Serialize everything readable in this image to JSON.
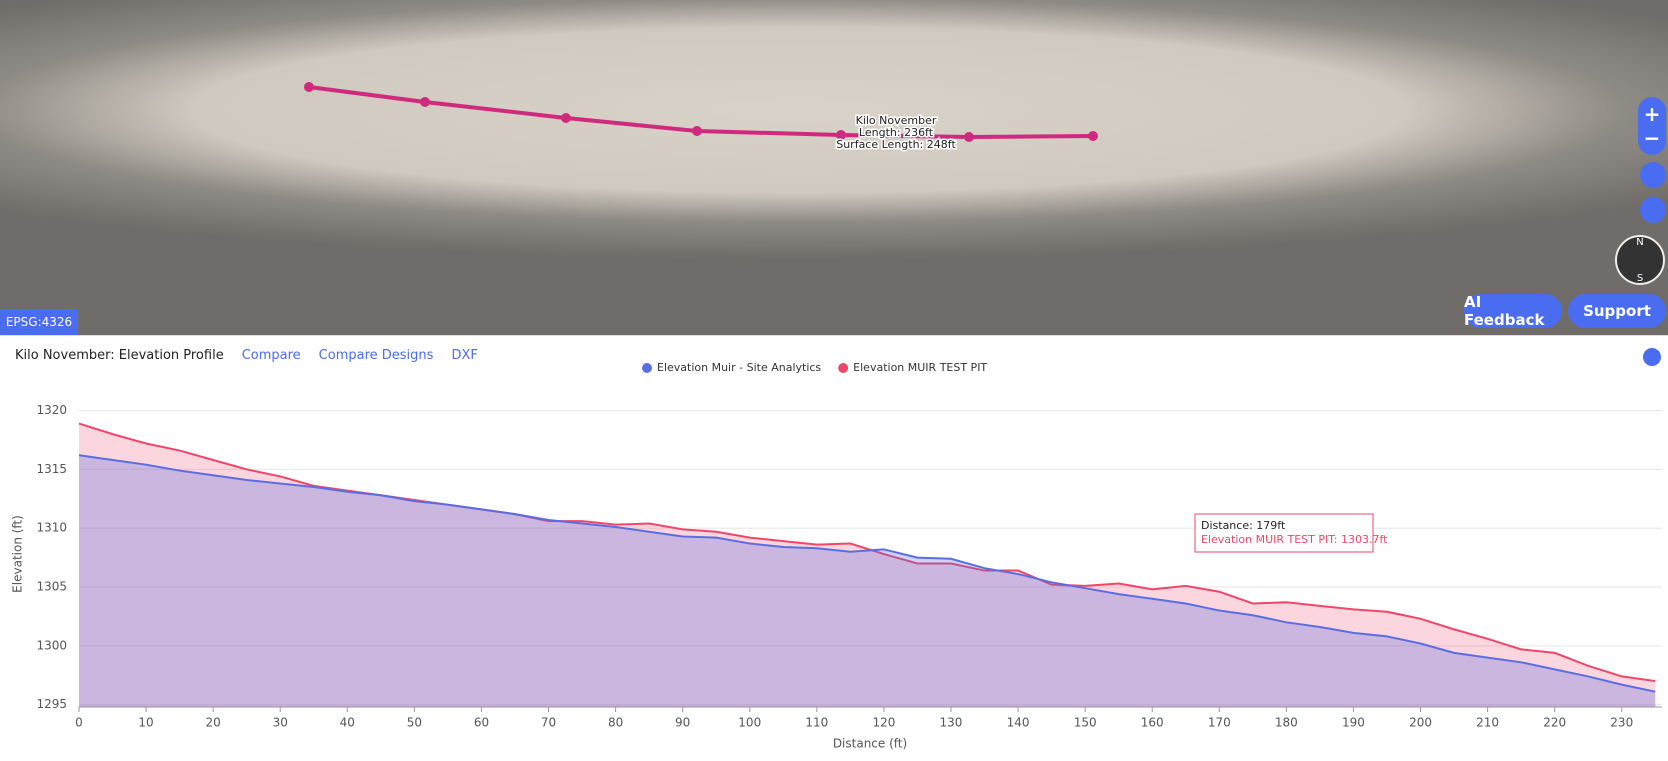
{
  "map": {
    "labels": [
      "Kilo November",
      "Length: 236ft",
      "Surface Length: 248ft"
    ],
    "crs": "EPSG:4326",
    "zoom_in": "+",
    "zoom_out": "−",
    "compass": [
      "N",
      "S"
    ],
    "buttons": [
      "AI Feedback",
      "Support"
    ]
  },
  "panel": {
    "title": "Kilo November: Elevation Profile",
    "actions": [
      "Compare",
      "Compare Designs",
      "DXF"
    ]
  },
  "chart_data": {
    "type": "area",
    "x": [
      0,
      5,
      10,
      15,
      20,
      25,
      30,
      35,
      40,
      45,
      50,
      55,
      60,
      65,
      70,
      75,
      80,
      85,
      90,
      95,
      100,
      105,
      110,
      115,
      120,
      125,
      130,
      135,
      140,
      145,
      150,
      155,
      160,
      165,
      170,
      175,
      180,
      185,
      190,
      195,
      200,
      205,
      210,
      215,
      220,
      225,
      230,
      235
    ],
    "series": [
      {
        "name": "Elevation Muir - Site Analytics",
        "color": "#5b6ee1",
        "values": [
          1316.2,
          1315.8,
          1315.4,
          1314.9,
          1314.5,
          1314.1,
          1313.8,
          1313.5,
          1313.1,
          1312.8,
          1312.3,
          1312.0,
          1311.6,
          1311.2,
          1310.7,
          1310.4,
          1310.1,
          1309.7,
          1309.3,
          1309.2,
          1308.7,
          1308.4,
          1308.3,
          1308.0,
          1308.2,
          1307.5,
          1307.4,
          1306.6,
          1306.1,
          1305.4,
          1304.9,
          1304.4,
          1304.0,
          1303.6,
          1303.0,
          1302.6,
          1302.0,
          1301.6,
          1301.1,
          1300.8,
          1300.2,
          1299.4,
          1299.0,
          1298.6,
          1298.0,
          1297.4,
          1296.7,
          1296.1
        ]
      },
      {
        "name": "Elevation MUIR TEST PIT",
        "color": "#f0466a",
        "values": [
          1318.9,
          1318.0,
          1317.2,
          1316.6,
          1315.8,
          1315.0,
          1314.4,
          1313.6,
          1313.2,
          1312.8,
          1312.4,
          1312.0,
          1311.6,
          1311.2,
          1310.6,
          1310.6,
          1310.3,
          1310.4,
          1309.9,
          1309.7,
          1309.2,
          1308.9,
          1308.6,
          1308.7,
          1307.8,
          1307.0,
          1307.0,
          1306.4,
          1306.4,
          1305.2,
          1305.1,
          1305.3,
          1304.8,
          1305.1,
          1304.6,
          1303.6,
          1303.7,
          1303.4,
          1303.1,
          1302.9,
          1302.3,
          1301.4,
          1300.6,
          1299.7,
          1299.4,
          1298.3,
          1297.4,
          1297.0
        ]
      }
    ],
    "xlim": [
      0,
      236
    ],
    "ylim": [
      1294.8,
      1320.9
    ],
    "xticks": [
      0,
      10,
      20,
      30,
      40,
      50,
      60,
      70,
      80,
      90,
      100,
      110,
      120,
      130,
      140,
      150,
      160,
      170,
      180,
      190,
      200,
      210,
      220,
      230
    ],
    "yticks": [
      1295,
      1300,
      1305,
      1310,
      1315,
      1320
    ],
    "x_label": "Distance (ft)",
    "y_label": "Elevation (ft)",
    "grid": true,
    "legend": "top",
    "tooltip": [
      "Distance: 179ft",
      "Elevation MUIR TEST PIT: 1303.7ft"
    ]
  }
}
